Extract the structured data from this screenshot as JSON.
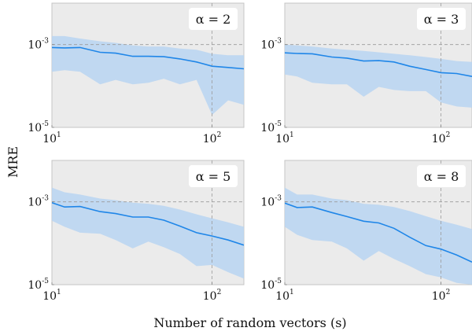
{
  "figure": {
    "ylabel": "MRE",
    "xlabel": "Number of random vectors (s)",
    "colors": {
      "panel_bg": "#ebebeb",
      "line": "#1f86e8",
      "band": "#b9d5f2",
      "ref_line": "#9a9a9a",
      "label_box": "#ffffff"
    }
  },
  "chart_data": [
    {
      "type": "line",
      "panel_label": "α = 2",
      "x": [
        10,
        12,
        15,
        20,
        25,
        32,
        40,
        50,
        63,
        80,
        100,
        126,
        158
      ],
      "y": [
        0.00085,
        0.00083,
        0.00085,
        0.00065,
        0.00062,
        0.00052,
        0.00052,
        0.00051,
        0.00045,
        0.00038,
        0.0003,
        0.00028,
        0.00026
      ],
      "band_upper": [
        0.0016,
        0.0016,
        0.0014,
        0.0012,
        0.0011,
        0.00095,
        0.0009,
        0.0009,
        0.0008,
        0.00075,
        0.0006,
        0.00055,
        0.00055
      ],
      "band_lower": [
        0.00022,
        0.00024,
        0.00022,
        0.00011,
        0.00014,
        0.00011,
        0.00012,
        0.00015,
        0.00011,
        0.00014,
        2e-05,
        4.5e-05,
        3.5e-05
      ],
      "xscale": "log",
      "yscale": "log",
      "xlim": [
        10,
        158
      ],
      "ylim": [
        1e-05,
        0.01
      ],
      "x_ticks": [
        {
          "value": 10,
          "base": "10",
          "exp": "1"
        },
        {
          "value": 100,
          "base": "10",
          "exp": "2"
        }
      ],
      "y_ticks": [
        {
          "value": 1e-05,
          "base": "10",
          "exp": "-5"
        },
        {
          "value": 0.001,
          "base": "10",
          "exp": "-3"
        }
      ],
      "ref_x": 100,
      "ref_y": 0.001
    },
    {
      "type": "line",
      "panel_label": "α = 3",
      "x": [
        10,
        12,
        15,
        20,
        25,
        32,
        40,
        50,
        63,
        80,
        100,
        126,
        158
      ],
      "y": [
        0.00063,
        0.00061,
        0.0006,
        0.0005,
        0.00047,
        0.0004,
        0.00041,
        0.00038,
        0.0003,
        0.00025,
        0.00021,
        0.0002,
        0.00017
      ],
      "band_upper": [
        0.001,
        0.00095,
        0.0009,
        0.0008,
        0.00075,
        0.0007,
        0.00065,
        0.0006,
        0.00055,
        0.0005,
        0.00045,
        0.0004,
        0.00038
      ],
      "band_lower": [
        0.00019,
        0.00017,
        0.00012,
        0.00011,
        0.00011,
        5.5e-05,
        9.5e-05,
        8e-05,
        7.5e-05,
        7.5e-05,
        4e-05,
        3.2e-05,
        3e-05
      ],
      "xscale": "log",
      "yscale": "log",
      "xlim": [
        10,
        158
      ],
      "ylim": [
        1e-05,
        0.01
      ],
      "x_ticks": [
        {
          "value": 10,
          "base": "10",
          "exp": "1"
        },
        {
          "value": 100,
          "base": "10",
          "exp": "2"
        }
      ],
      "y_ticks": [
        {
          "value": 1e-05,
          "base": "10",
          "exp": "-5"
        },
        {
          "value": 0.001,
          "base": "10",
          "exp": "-3"
        }
      ],
      "ref_x": 100,
      "ref_y": 0.001
    },
    {
      "type": "line",
      "panel_label": "α = 5",
      "x": [
        10,
        12,
        15,
        20,
        25,
        32,
        40,
        50,
        63,
        80,
        100,
        126,
        158
      ],
      "y": [
        0.00095,
        0.00075,
        0.00077,
        0.00058,
        0.00052,
        0.00043,
        0.00043,
        0.00036,
        0.00026,
        0.00018,
        0.00015,
        0.00012,
        9e-05
      ],
      "band_upper": [
        0.0022,
        0.0017,
        0.0015,
        0.0012,
        0.0011,
        0.00095,
        0.0009,
        0.0008,
        0.00065,
        0.0005,
        0.0004,
        0.00032,
        0.00025
      ],
      "band_lower": [
        0.00035,
        0.00025,
        0.00018,
        0.00017,
        0.00012,
        7.5e-05,
        0.00011,
        8e-05,
        5.5e-05,
        2.8e-05,
        3e-05,
        2e-05,
        1.4e-05
      ],
      "xscale": "log",
      "yscale": "log",
      "xlim": [
        10,
        158
      ],
      "ylim": [
        1e-05,
        0.01
      ],
      "x_ticks": [
        {
          "value": 10,
          "base": "10",
          "exp": "1"
        },
        {
          "value": 100,
          "base": "10",
          "exp": "2"
        }
      ],
      "y_ticks": [
        {
          "value": 1e-05,
          "base": "10",
          "exp": "-5"
        },
        {
          "value": 0.001,
          "base": "10",
          "exp": "-3"
        }
      ],
      "ref_x": 100,
      "ref_y": 0.001
    },
    {
      "type": "line",
      "panel_label": "α = 8",
      "x": [
        10,
        12,
        15,
        20,
        25,
        32,
        40,
        50,
        63,
        80,
        100,
        126,
        158
      ],
      "y": [
        0.00093,
        0.00073,
        0.00075,
        0.00055,
        0.00044,
        0.00034,
        0.00031,
        0.00023,
        0.00014,
        8.8e-05,
        7.2e-05,
        5.2e-05,
        3.5e-05
      ],
      "band_upper": [
        0.0022,
        0.0015,
        0.0015,
        0.0012,
        0.0011,
        0.0009,
        0.00085,
        0.00075,
        0.0006,
        0.00045,
        0.00035,
        0.00028,
        0.00022
      ],
      "band_lower": [
        0.00025,
        0.00016,
        0.00012,
        0.00011,
        7.5e-05,
        3.8e-05,
        6.5e-05,
        4.2e-05,
        2.8e-05,
        1.8e-05,
        1.5e-05,
        1.1e-05,
        1e-05
      ],
      "xscale": "log",
      "yscale": "log",
      "xlim": [
        10,
        158
      ],
      "ylim": [
        1e-05,
        0.01
      ],
      "x_ticks": [
        {
          "value": 10,
          "base": "10",
          "exp": "1"
        },
        {
          "value": 100,
          "base": "10",
          "exp": "2"
        }
      ],
      "y_ticks": [
        {
          "value": 1e-05,
          "base": "10",
          "exp": "-5"
        },
        {
          "value": 0.001,
          "base": "10",
          "exp": "-3"
        }
      ],
      "ref_x": 100,
      "ref_y": 0.001
    }
  ]
}
